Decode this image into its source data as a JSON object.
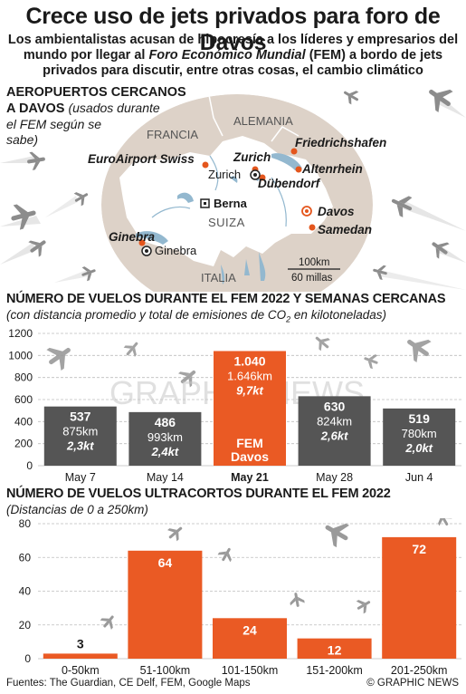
{
  "header": {
    "title": "Crece uso de jets privados para foro de Davos",
    "subtitle_1": "Los ambientalistas acusan de hipocresía a los líderes y empresarios del mundo por llegar al",
    "subtitle_em": "Foro Económico Mundial",
    "subtitle_2": "(FEM) a bordo de jets privados para discutir, entre otras cosas, el cambio climático"
  },
  "map": {
    "title_line1": "AEROPUERTOS CERCANOS",
    "title_line2": "A DAVOS",
    "title_note_1": "(usados durante",
    "title_note_2": "el FEM según se",
    "title_note_3": "sabe)",
    "countries": {
      "france": "FRANCIA",
      "germany": "ALEMANIA",
      "switzerland": "SUIZA",
      "italy": "ITALIA"
    },
    "airports": {
      "euroairport": "EuroAirport Swiss",
      "zurich": "Zurich",
      "friedrichshafen": "Friedrichshafen",
      "altenrhein": "Altenrhein",
      "dubendorf": "Dübendorf",
      "davos": "Davos",
      "samedan": "Samedan",
      "ginebra": "Ginebra"
    },
    "cities": {
      "zurich": "Zurich",
      "berna": "Berna",
      "ginebra": "Ginebra"
    },
    "scale_km": "100km",
    "scale_mi": "60 millas",
    "colors": {
      "land": "#ddd2c8",
      "water": "#93b8cf",
      "airport": "#e4561d"
    }
  },
  "chart1": {
    "heading": "NÚMERO DE VUELOS DURANTE EL FEM 2022 Y SEMANAS CERCANAS",
    "subheading_pre": "(con distancia promedio y total de emisiones de CO",
    "subheading_sub": "2",
    "subheading_post": " en kilotoneladas)",
    "watermark": "GRAPHIC NEWS",
    "highlight_label_1": "FEM",
    "highlight_label_2": "Davos"
  },
  "chart2": {
    "heading": "NÚMERO DE VUELOS ULTRACORTOS DURANTE EL FEM 2022",
    "subheading": "(Distancias de 0 a 250km)"
  },
  "chart_data": [
    {
      "type": "bar",
      "categories": [
        "May 7",
        "May 14",
        "May 21",
        "May 28",
        "Jun 4"
      ],
      "values": [
        537,
        486,
        1040,
        630,
        519
      ],
      "value_labels": [
        "537",
        "486",
        "1.040",
        "630",
        "519"
      ],
      "distance_labels": [
        "875km",
        "993km",
        "1.646km",
        "824km",
        "780km"
      ],
      "emission_labels": [
        "2,3kt",
        "2,4kt",
        "9,7kt",
        "2,6kt",
        "2,0kt"
      ],
      "highlight": "May 21",
      "ylim": [
        0,
        1200
      ],
      "yticks": [
        0,
        200,
        400,
        600,
        800,
        1000,
        1200
      ],
      "grid": true,
      "colors": {
        "bar": "#555555",
        "highlight": "#ea5a24"
      }
    },
    {
      "type": "bar",
      "categories": [
        "0-50km",
        "51-100km",
        "101-150km",
        "151-200km",
        "201-250km"
      ],
      "values": [
        3,
        64,
        24,
        12,
        72
      ],
      "ylim": [
        0,
        80
      ],
      "yticks": [
        0,
        20,
        40,
        60,
        80
      ],
      "grid": true,
      "colors": {
        "bar": "#ea5a24"
      }
    }
  ],
  "footer": {
    "sources": "Fuentes: The Guardian, CE Delf, FEM, Google Maps",
    "copyright": "© GRAPHIC NEWS"
  }
}
